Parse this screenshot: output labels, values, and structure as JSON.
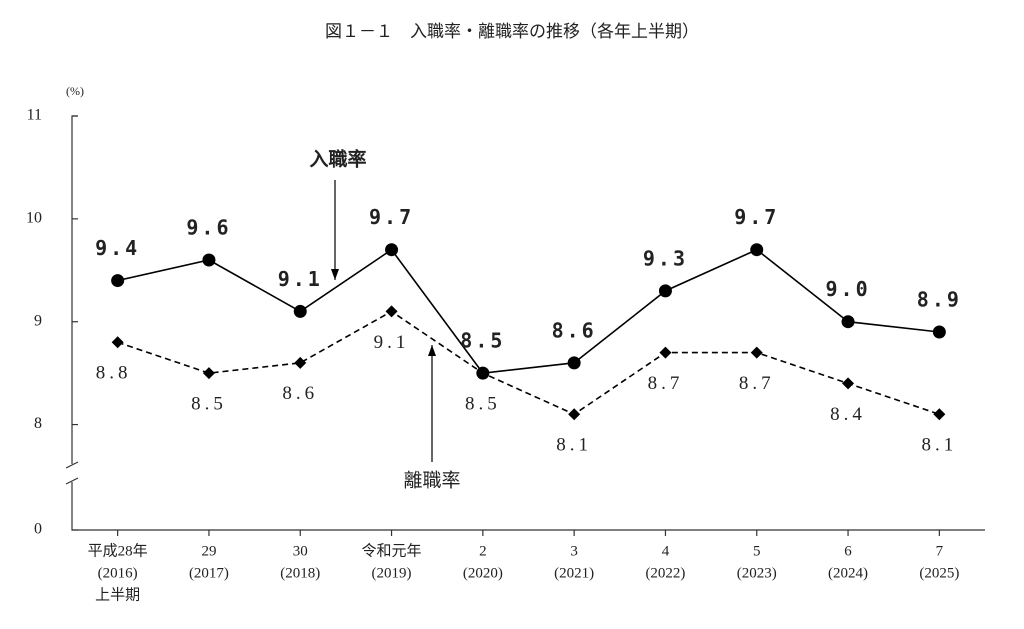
{
  "chart_data": {
    "type": "line",
    "title": "図１－１　入職率・離職率の推移（各年上半期）",
    "y_label": "(%)",
    "categories": [
      [
        "平成28年",
        "(2016)",
        "上半期"
      ],
      [
        "29",
        "(2017)"
      ],
      [
        "30",
        "(2018)"
      ],
      [
        "令和元年",
        "(2019)"
      ],
      [
        "2",
        "(2020)"
      ],
      [
        "3",
        "(2021)"
      ],
      [
        "4",
        "(2022)"
      ],
      [
        "5",
        "(2023)"
      ],
      [
        "6",
        "(2024)"
      ],
      [
        "7",
        "(2025)"
      ]
    ],
    "ylim": [
      0,
      11
    ],
    "y_break": [
      0,
      7.5
    ],
    "yticks": [
      0,
      8,
      9,
      10,
      11
    ],
    "series": [
      {
        "name": "入職率",
        "color": "#000000",
        "line_style": "solid",
        "marker": "circle",
        "values": [
          9.4,
          9.6,
          9.1,
          9.7,
          8.5,
          8.6,
          9.3,
          9.7,
          9.0,
          8.9
        ],
        "value_labels": [
          "9.4",
          "9.6",
          "9.1",
          "9.7",
          "8.5",
          "8.6",
          "9.3",
          "9.7",
          "9.0",
          "8.9"
        ]
      },
      {
        "name": "離職率",
        "color": "#000000",
        "line_style": "dashed",
        "marker": "diamond",
        "values": [
          8.8,
          8.5,
          8.6,
          9.1,
          8.5,
          8.1,
          8.7,
          8.7,
          8.4,
          8.1
        ],
        "value_labels": [
          "8.8",
          "8.5",
          "8.6",
          "9.1",
          "8.5",
          "8.1",
          "8.7",
          "8.7",
          "8.4",
          "8.1"
        ]
      }
    ]
  }
}
